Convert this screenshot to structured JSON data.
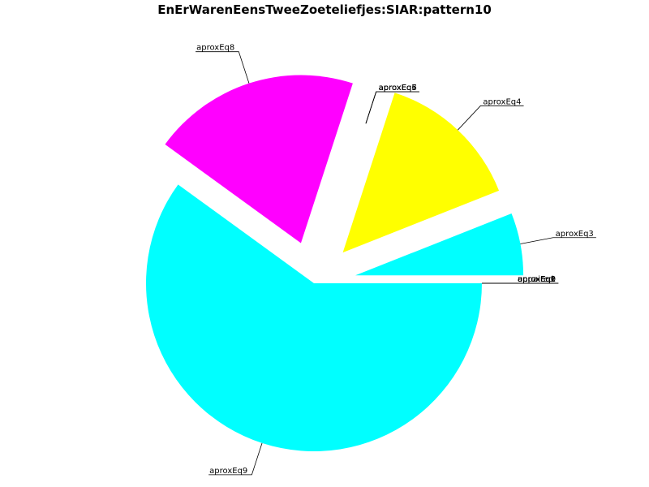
{
  "chart_data": {
    "type": "pie",
    "title": "EnErWarenEensTweeZoeteliefjes:SIAR:pattern10",
    "slices": [
      {
        "label": "unpaired",
        "value": 0,
        "color": "#00ffff"
      },
      {
        "label": "aproxEq0",
        "value": 0,
        "color": "#00ffff"
      },
      {
        "label": "aproxEq1",
        "value": 0,
        "color": "#00ffff"
      },
      {
        "label": "aproxEq2",
        "value": 0,
        "color": "#00ffff"
      },
      {
        "label": "aproxEq3",
        "value": 6,
        "color": "#00ffff"
      },
      {
        "label": "aproxEq4",
        "value": 14,
        "color": "#ffff00"
      },
      {
        "label": "aproxEq5",
        "value": 0,
        "color": "#ffff00"
      },
      {
        "label": "aproxEq6",
        "value": 0,
        "color": "#ffff00"
      },
      {
        "label": "aproxEq7",
        "value": 0,
        "color": "#ffff00"
      },
      {
        "label": "aproxEq8",
        "value": 20,
        "color": "#ff00ff"
      },
      {
        "label": "aproxEq9",
        "value": 60,
        "color": "#00ffff"
      }
    ],
    "legend": "none"
  }
}
